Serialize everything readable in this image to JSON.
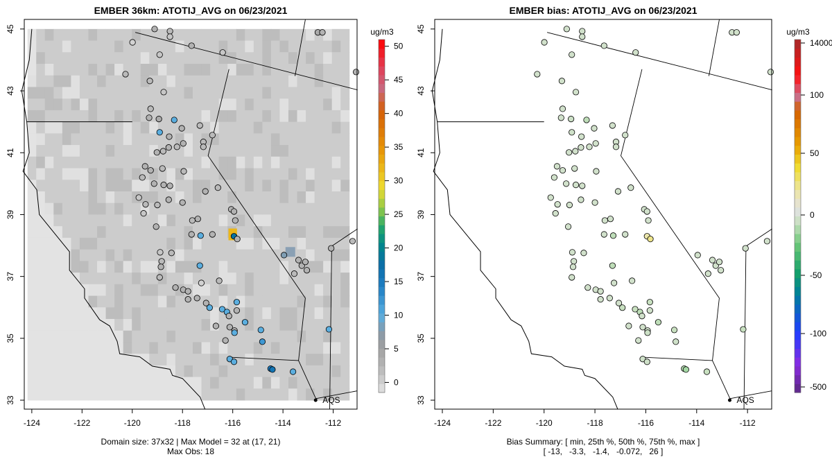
{
  "chart_data": [
    {
      "type": "map",
      "title": "EMBER 36km: ATOTIJ_AVG on 06/23/2021",
      "xlim": [
        -124.3,
        -111.05
      ],
      "ylim": [
        32.71,
        45.31
      ],
      "xticks": [
        -124,
        -122,
        -120,
        -118,
        -116,
        -114,
        -112
      ],
      "yticks": [
        33,
        35,
        37,
        39,
        41,
        43,
        45
      ],
      "colorbar": {
        "unit": "ug/m3",
        "ticks": [
          0,
          5,
          10,
          15,
          20,
          25,
          30,
          35,
          40,
          45,
          50
        ],
        "range": [
          -2,
          51
        ]
      },
      "footer": [
        "Domain size: 37x32 | Max Model = 32 at (17, 21)",
        "Max Obs: 18"
      ],
      "legend_label": "AQS",
      "highlight_cell": {
        "lon": -116.0,
        "lat": 38.36,
        "value": 32
      }
    },
    {
      "type": "map",
      "title": "EMBER bias: ATOTIJ_AVG on 06/23/2021",
      "xlim": [
        -124.3,
        -111.05
      ],
      "ylim": [
        32.71,
        45.31
      ],
      "xticks": [
        -124,
        -122,
        -120,
        -118,
        -116,
        -114,
        -112
      ],
      "yticks": [
        33,
        35,
        37,
        39,
        41,
        43,
        45
      ],
      "colorbar": {
        "unit": "ug/m3",
        "ticks": [
          "-500",
          "-100",
          "-50",
          "0",
          "50",
          "100",
          "14000"
        ]
      },
      "footer": [
        "Bias Summary: [ min, 25th %, 50th %, 75th %, max ]",
        "[ -13,   -3.3,   -1.4,   -0.072,   26 ]"
      ],
      "legend_label": "AQS"
    }
  ],
  "stations": [
    [
      -119.99,
      44.57,
      0,
      -2
    ],
    [
      -117.64,
      44.46,
      3,
      -2
    ],
    [
      -116.4,
      44.24,
      1,
      -2
    ],
    [
      -119.11,
      45.0,
      3,
      -2
    ],
    [
      -118.5,
      44.93,
      2,
      -2
    ],
    [
      -118.5,
      44.75,
      1,
      -2
    ],
    [
      -118.91,
      44.17,
      1,
      -2
    ],
    [
      -112.61,
      44.89,
      4,
      -2
    ],
    [
      -112.43,
      44.89,
      3,
      -2
    ],
    [
      -111.09,
      43.61,
      3,
      -2
    ],
    [
      -120.27,
      43.54,
      2,
      -2
    ],
    [
      -119.3,
      43.32,
      2,
      -2
    ],
    [
      -118.75,
      42.96,
      1,
      -2
    ],
    [
      -119.27,
      42.42,
      2,
      -2
    ],
    [
      -119.33,
      42.13,
      3,
      -2
    ],
    [
      -118.94,
      42.09,
      4,
      -4
    ],
    [
      -118.33,
      42.06,
      10,
      -8
    ],
    [
      -118.91,
      41.66,
      10,
      -3
    ],
    [
      -118.53,
      41.52,
      3,
      -2
    ],
    [
      -118.03,
      41.79,
      3,
      -2
    ],
    [
      -117.31,
      41.88,
      2,
      -2
    ],
    [
      -118.55,
      41.17,
      3,
      -2
    ],
    [
      -118.77,
      41.05,
      2,
      -2
    ],
    [
      -119.02,
      41.01,
      3,
      -2
    ],
    [
      -118.22,
      41.19,
      2,
      -2
    ],
    [
      -117.97,
      41.3,
      3,
      -2
    ],
    [
      -117.17,
      41.35,
      2,
      -2
    ],
    [
      -116.81,
      41.57,
      2,
      -2
    ],
    [
      -117.17,
      41.19,
      2,
      -2
    ],
    [
      -119.49,
      40.56,
      3,
      -2
    ],
    [
      -119.27,
      40.43,
      3,
      -2
    ],
    [
      -118.8,
      40.49,
      2,
      -2
    ],
    [
      -117.95,
      40.4,
      2,
      -2
    ],
    [
      -119.6,
      40.2,
      2,
      -2
    ],
    [
      -119.13,
      40.0,
      3,
      -2
    ],
    [
      -118.75,
      39.96,
      3,
      -2
    ],
    [
      -118.5,
      39.93,
      3,
      -2
    ],
    [
      -116.59,
      39.87,
      2,
      -2
    ],
    [
      -117.09,
      39.75,
      3,
      -2
    ],
    [
      -119.74,
      39.55,
      1,
      -2
    ],
    [
      -119.47,
      39.33,
      2,
      -2
    ],
    [
      -119.0,
      39.31,
      2,
      -2
    ],
    [
      -118.55,
      39.48,
      3,
      -2
    ],
    [
      -118.0,
      39.39,
      3,
      -2
    ],
    [
      -119.55,
      39.04,
      1,
      -2
    ],
    [
      -119.05,
      38.61,
      3,
      -2
    ],
    [
      -117.61,
      38.81,
      2,
      -2
    ],
    [
      -117.39,
      38.86,
      3,
      -2
    ],
    [
      -116.06,
      39.17,
      3,
      -2
    ],
    [
      -115.95,
      39.1,
      3,
      -2
    ],
    [
      -115.9,
      38.81,
      3,
      -2
    ],
    [
      -115.95,
      38.3,
      18,
      20
    ],
    [
      -115.82,
      38.21,
      3,
      26
    ],
    [
      -117.64,
      38.36,
      3,
      -2
    ],
    [
      -117.28,
      38.32,
      10,
      -8
    ],
    [
      -116.81,
      38.36,
      3,
      -2
    ],
    [
      -118.89,
      37.78,
      1,
      -2
    ],
    [
      -118.83,
      37.49,
      2,
      -2
    ],
    [
      -118.86,
      37.31,
      3,
      -2
    ],
    [
      -118.44,
      37.76,
      2,
      -2
    ],
    [
      -117.31,
      37.35,
      10,
      -8
    ],
    [
      -118.91,
      36.97,
      2,
      -2
    ],
    [
      -118.28,
      36.64,
      3,
      -2
    ],
    [
      -117.97,
      36.57,
      3,
      -2
    ],
    [
      -117.25,
      36.79,
      0,
      -2
    ],
    [
      -116.54,
      36.86,
      2,
      -2
    ],
    [
      -117.78,
      36.52,
      3,
      -2
    ],
    [
      -117.78,
      36.26,
      3,
      -2
    ],
    [
      -117.42,
      36.3,
      3,
      -2
    ],
    [
      -117.06,
      36.14,
      3,
      -2
    ],
    [
      -116.92,
      35.99,
      10,
      -6
    ],
    [
      -116.42,
      35.94,
      10,
      -6
    ],
    [
      -116.23,
      35.85,
      10,
      -8
    ],
    [
      -116.15,
      35.72,
      3,
      -2
    ],
    [
      -115.84,
      36.17,
      10,
      -6
    ],
    [
      -115.84,
      35.9,
      3,
      -2
    ],
    [
      -116.67,
      35.4,
      3,
      -2
    ],
    [
      -116.12,
      35.36,
      3,
      -2
    ],
    [
      -115.93,
      35.25,
      3,
      -2
    ],
    [
      -115.51,
      35.52,
      10,
      -8
    ],
    [
      -114.88,
      35.27,
      10,
      -6
    ],
    [
      -114.82,
      34.89,
      12,
      -3
    ],
    [
      -116.29,
      34.93,
      3,
      -2
    ],
    [
      -115.93,
      35.18,
      10,
      -4
    ],
    [
      -116.12,
      34.33,
      10,
      -3
    ],
    [
      -115.95,
      34.24,
      10,
      -3
    ],
    [
      -114.49,
      34.02,
      14,
      -10
    ],
    [
      -114.42,
      33.99,
      16,
      -13
    ],
    [
      -113.6,
      33.92,
      10,
      -6
    ],
    [
      -113.25,
      37.35,
      3,
      -2
    ],
    [
      -113.38,
      37.53,
      3,
      -2
    ],
    [
      -113.11,
      37.47,
      3,
      -2
    ],
    [
      -113.55,
      37.09,
      2,
      -2
    ],
    [
      -113.05,
      37.2,
      3,
      -2
    ],
    [
      -112.08,
      37.91,
      3,
      -2
    ],
    [
      -111.23,
      38.14,
      2,
      -2
    ],
    [
      -112.17,
      35.29,
      10,
      -6
    ],
    [
      -113.96,
      37.69,
      8,
      -2
    ]
  ]
}
